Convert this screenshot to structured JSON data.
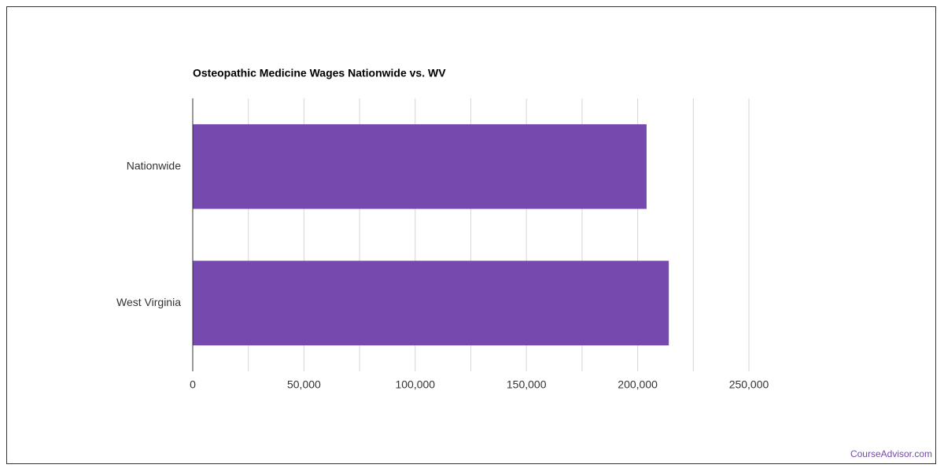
{
  "chart_data": {
    "type": "barh",
    "title": "Osteopathic Medicine Wages Nationwide vs. WV",
    "categories": [
      "Nationwide",
      "West Virginia"
    ],
    "values": [
      204000,
      214000
    ],
    "color": "#7549ad",
    "xlim": [
      0,
      250000
    ],
    "xticks": [
      0,
      {
        "value": 50000,
        "label": "50,000"
      },
      {
        "value": 100000,
        "label": "100,000"
      },
      {
        "value": 150000,
        "label": "150,000"
      },
      {
        "value": 200000,
        "label": "200,000"
      },
      {
        "value": 250000,
        "label": "250,000"
      }
    ],
    "minor_xticks": [
      25000,
      75000,
      125000,
      175000,
      225000
    ],
    "grid": true
  },
  "footer": "CourseAdvisor.com"
}
